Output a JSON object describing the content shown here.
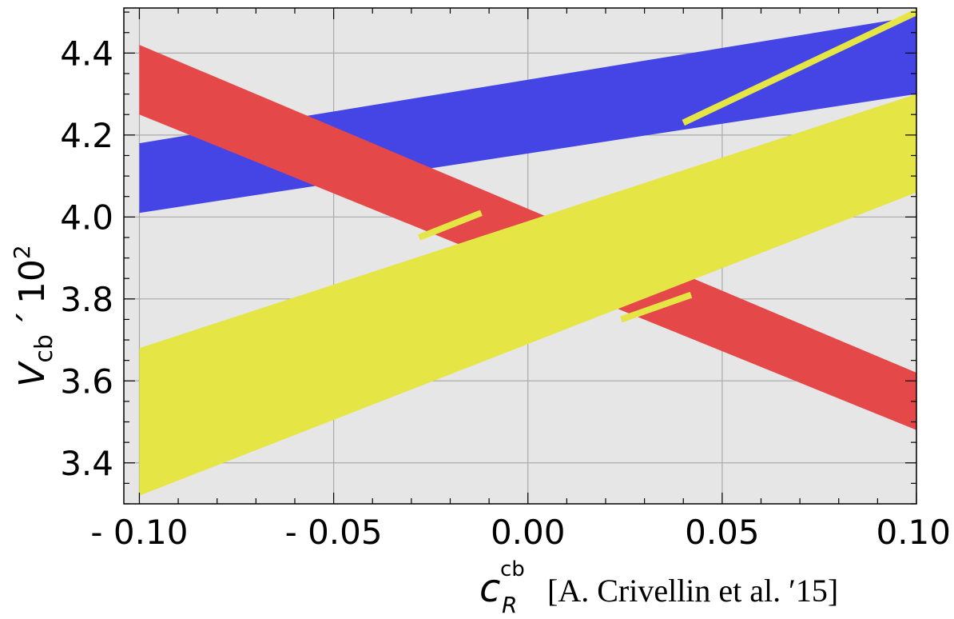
{
  "chart_data": {
    "type": "area",
    "x_ticks": [
      "- 0.10",
      "- 0.05",
      "0.00",
      "0.05",
      "0.10"
    ],
    "x_tick_values": [
      -0.1,
      -0.05,
      0.0,
      0.05,
      0.1
    ],
    "y_ticks": [
      "3.4",
      "3.6",
      "3.8",
      "4.0",
      "4.2",
      "4.4"
    ],
    "y_tick_values": [
      3.4,
      3.6,
      3.8,
      4.0,
      4.2,
      4.4
    ],
    "xlim": [
      -0.104,
      0.1
    ],
    "ylim": [
      3.3,
      4.51
    ],
    "grid": true,
    "colors": {
      "blue": "#4545e5",
      "red": "#e54848",
      "yellow": "#e5e545",
      "background": "#e6e6e6"
    },
    "ylabel": {
      "main": "V",
      "sub": "cb",
      "times": "´",
      "base": "10",
      "exp": "2"
    },
    "xlabel": {
      "main": "c",
      "sub": "R",
      "sup": "cb"
    },
    "annotation": "[A. Crivellin et al. ′15]",
    "series": [
      {
        "color": "blue",
        "x": [
          -0.1,
          0.1
        ],
        "lower": [
          4.01,
          4.3
        ],
        "upper": [
          4.18,
          4.49
        ]
      },
      {
        "color": "red",
        "x": [
          -0.1,
          0.1
        ],
        "lower": [
          4.25,
          3.48
        ],
        "upper": [
          4.42,
          3.62
        ]
      },
      {
        "color": "yellow",
        "x": [
          -0.1,
          0.1
        ],
        "lower": [
          3.32,
          4.06
        ],
        "upper": [
          3.68,
          4.3
        ]
      },
      {
        "color": "yellow",
        "type": "line",
        "x": [
          -0.028,
          -0.012
        ],
        "y": [
          3.95,
          4.01
        ]
      },
      {
        "color": "yellow",
        "type": "line",
        "x": [
          0.024,
          0.042
        ],
        "y": [
          3.75,
          3.81
        ]
      },
      {
        "color": "yellow",
        "type": "line",
        "x": [
          0.04,
          0.1
        ],
        "y": [
          4.23,
          4.5
        ]
      }
    ]
  }
}
